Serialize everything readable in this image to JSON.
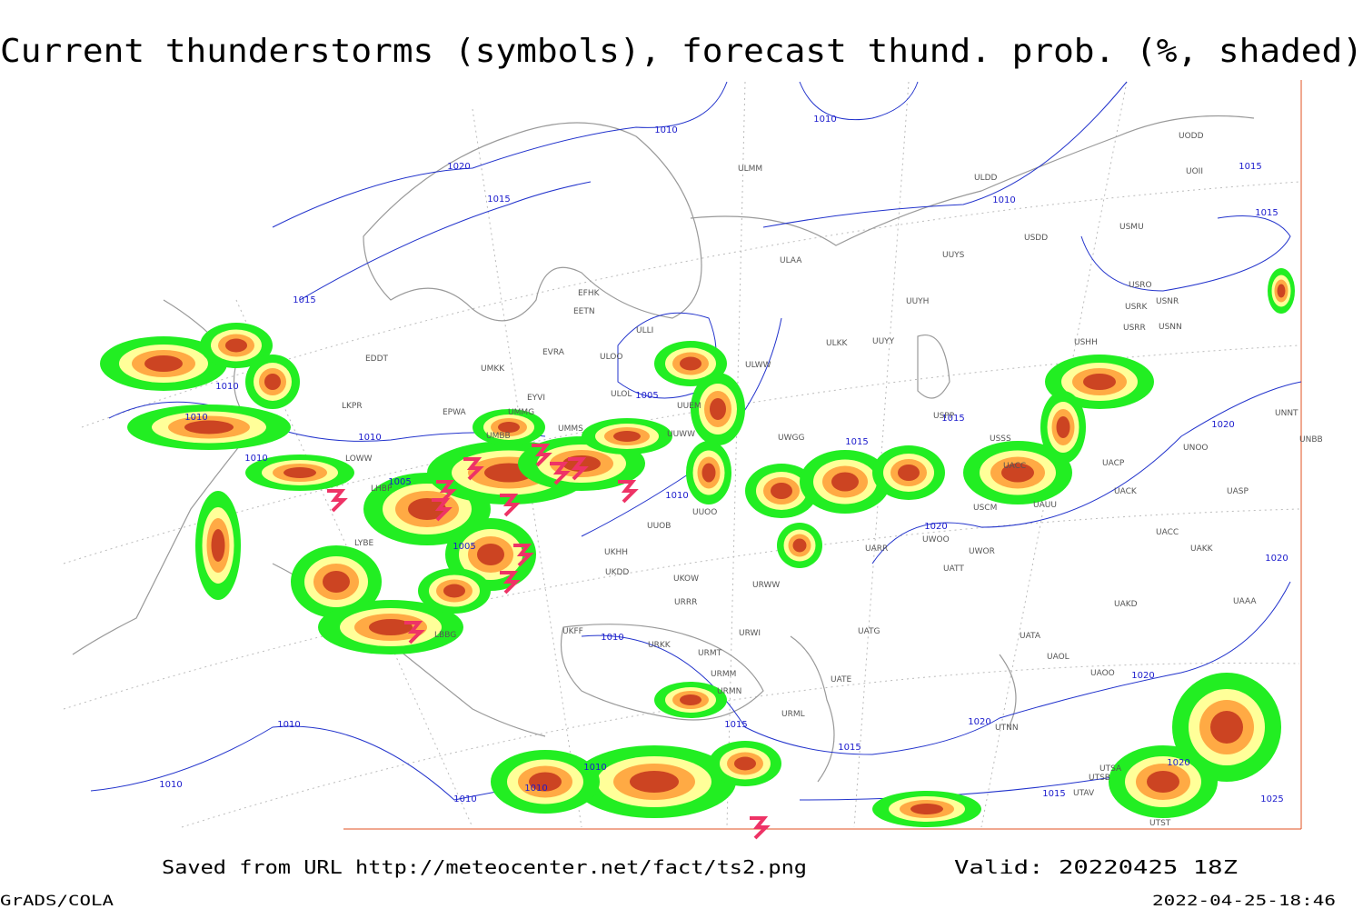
{
  "header": {
    "title": "Current thunderstorms (symbols), forecast thund. prob. (%, shaded)"
  },
  "map": {
    "isobar_labels": [
      "1010",
      "1010",
      "1020",
      "1015",
      "1010",
      "1015",
      "1015",
      "1015",
      "1010",
      "1010",
      "1005",
      "1010",
      "1010",
      "1005",
      "1015",
      "1015",
      "1010",
      "1020",
      "1005",
      "1020",
      "1020",
      "1010",
      "1020",
      "1015",
      "1020",
      "1010",
      "1015",
      "1010",
      "1010",
      "1010",
      "1010",
      "1015",
      "1020",
      "1025"
    ],
    "station_labels": [
      "ULMM",
      "ULDD",
      "UOII",
      "UODD",
      "USMU",
      "USDD",
      "UUYS",
      "ULAA",
      "USRO",
      "USNR",
      "USRK",
      "UUYH",
      "USRR",
      "USNN",
      "ULKK",
      "UUYY",
      "USHH",
      "EFHK",
      "EETN",
      "ULLI",
      "EVRA",
      "ULOO",
      "ULWW",
      "UMKK",
      "EDDT",
      "EYVI",
      "ULOL",
      "UUEM",
      "EPWA",
      "UMMG",
      "LKPR",
      "USPP",
      "USSS",
      "UNBB",
      "UNNT",
      "UMMS",
      "UMBB",
      "UUWW",
      "UWGG",
      "UNOO",
      "LOWW",
      "UACC",
      "UACP",
      "LHBP",
      "UUOO",
      "UACK",
      "UASP",
      "UUOB",
      "USCM",
      "UAUU",
      "LYBE",
      "UWOO",
      "UWOR",
      "UARR",
      "UKHH",
      "UKDD",
      "UACC",
      "UAKK",
      "UATT",
      "UKOW",
      "URWW",
      "URRR",
      "UAKD",
      "UAAA",
      "UATG",
      "URWI",
      "UKFF",
      "URKK",
      "UATA",
      "URMT",
      "UAOL",
      "UAOO",
      "URMM",
      "UATE",
      "URMN",
      "LBBG",
      "URML",
      "UTNN",
      "UTSA",
      "UTSB",
      "UTAV",
      "UTST"
    ]
  },
  "footer": {
    "source": "Saved from URL http://meteocenter.net/fact/ts2.png",
    "valid": "Valid: 20220425 18Z",
    "software": "GrADS/COLA",
    "timestamp": "2022-04-25-18:46"
  }
}
